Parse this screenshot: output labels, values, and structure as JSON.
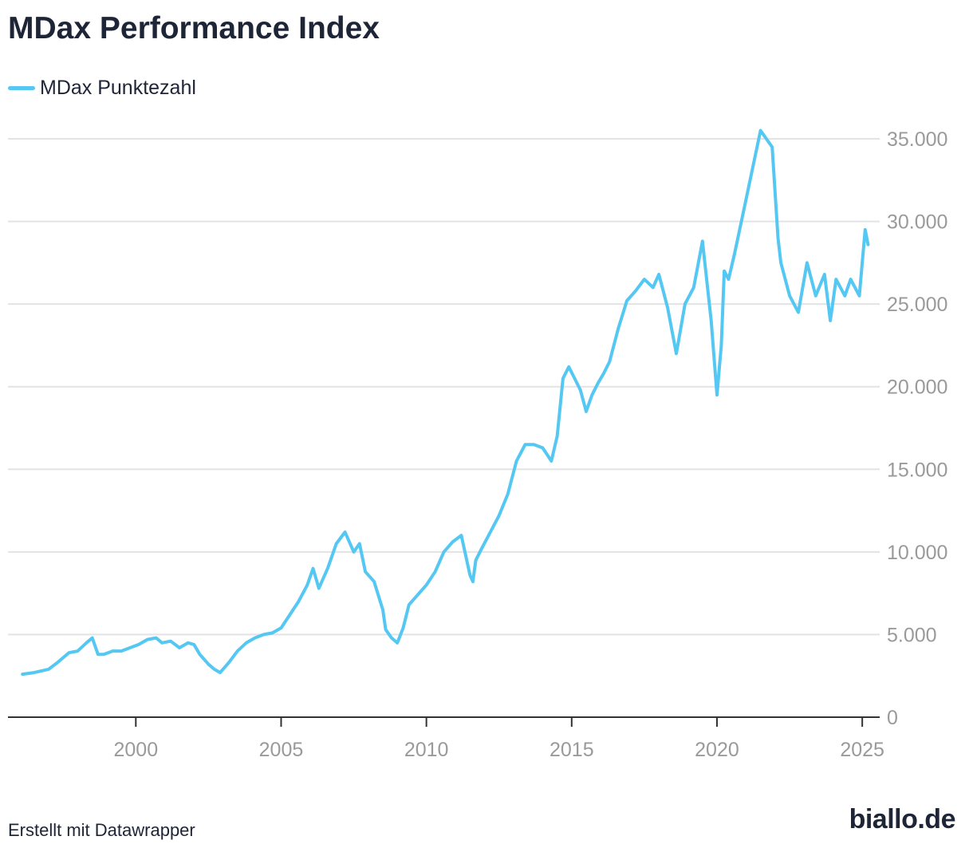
{
  "title": "MDax Performance Index",
  "legend": {
    "label": "MDax Punktezahl"
  },
  "footer": {
    "credit": "Erstellt mit Datawrapper"
  },
  "logo": {
    "text": "biallo.de"
  },
  "colors": {
    "line": "#54c7f2",
    "grid": "#e3e3e3",
    "axis": "#333333",
    "tick": "#9a9a9a"
  },
  "chart_data": {
    "type": "line",
    "title": "MDax Performance Index",
    "xlabel": "",
    "ylabel": "",
    "xlim": [
      1995.6,
      2025.6
    ],
    "ylim": [
      0,
      35000
    ],
    "x_ticks": [
      2000,
      2005,
      2010,
      2015,
      2020,
      2025
    ],
    "x_tick_labels": [
      "2000",
      "2005",
      "2010",
      "2015",
      "2020",
      "2025"
    ],
    "y_ticks": [
      0,
      5000,
      10000,
      15000,
      20000,
      25000,
      30000,
      35000
    ],
    "y_tick_labels": [
      "0",
      "5.000",
      "10.000",
      "15.000",
      "20.000",
      "25.000",
      "30.000",
      "35.000"
    ],
    "series": [
      {
        "name": "MDax Punktezahl",
        "x": [
          1996.1,
          1996.5,
          1997.0,
          1997.3,
          1997.7,
          1998.0,
          1998.3,
          1998.5,
          1998.7,
          1998.9,
          1999.2,
          1999.5,
          1999.8,
          2000.1,
          2000.4,
          2000.7,
          2000.9,
          2001.2,
          2001.5,
          2001.8,
          2002.0,
          2002.2,
          2002.5,
          2002.7,
          2002.9,
          2003.2,
          2003.5,
          2003.8,
          2004.1,
          2004.4,
          2004.7,
          2005.0,
          2005.3,
          2005.6,
          2005.9,
          2006.1,
          2006.3,
          2006.6,
          2006.9,
          2007.2,
          2007.5,
          2007.7,
          2007.9,
          2008.2,
          2008.5,
          2008.6,
          2008.8,
          2009.0,
          2009.2,
          2009.4,
          2009.7,
          2010.0,
          2010.3,
          2010.6,
          2010.9,
          2011.2,
          2011.5,
          2011.6,
          2011.7,
          2011.9,
          2012.2,
          2012.5,
          2012.8,
          2013.1,
          2013.4,
          2013.7,
          2014.0,
          2014.3,
          2014.5,
          2014.7,
          2014.9,
          2015.1,
          2015.3,
          2015.5,
          2015.7,
          2015.9,
          2016.1,
          2016.3,
          2016.6,
          2016.9,
          2017.2,
          2017.5,
          2017.8,
          2018.0,
          2018.3,
          2018.6,
          2018.9,
          2019.2,
          2019.5,
          2019.8,
          2020.0,
          2020.15,
          2020.25,
          2020.4,
          2020.6,
          2020.9,
          2021.2,
          2021.5,
          2021.7,
          2021.9,
          2022.1,
          2022.2,
          2022.5,
          2022.8,
          2023.1,
          2023.4,
          2023.7,
          2023.9,
          2024.1,
          2024.4,
          2024.6,
          2024.9,
          2025.0,
          2025.1,
          2025.2
        ],
        "values": [
          2600,
          2700,
          2900,
          3300,
          3900,
          4000,
          4500,
          4800,
          3800,
          3800,
          4000,
          4000,
          4200,
          4400,
          4700,
          4800,
          4500,
          4600,
          4200,
          4500,
          4400,
          3800,
          3200,
          2900,
          2700,
          3300,
          4000,
          4500,
          4800,
          5000,
          5100,
          5400,
          6200,
          7000,
          8000,
          9000,
          7800,
          9000,
          10500,
          11200,
          10000,
          10500,
          8800,
          8200,
          6500,
          5300,
          4800,
          4500,
          5400,
          6800,
          7400,
          8000,
          8800,
          10000,
          10600,
          11000,
          8600,
          8200,
          9500,
          10200,
          11200,
          12200,
          13500,
          15500,
          16500,
          16500,
          16300,
          15500,
          17000,
          20500,
          21200,
          20500,
          19800,
          18500,
          19500,
          20200,
          20800,
          21500,
          23500,
          25200,
          25800,
          26500,
          26000,
          26800,
          24800,
          22000,
          25000,
          26000,
          28800,
          24000,
          19500,
          22500,
          27000,
          26500,
          28000,
          30500,
          33000,
          35500,
          35000,
          34500,
          29000,
          27500,
          25500,
          24500,
          27500,
          25500,
          26800,
          24000,
          26500,
          25500,
          26500,
          25500,
          27500,
          29500,
          28600
        ]
      }
    ]
  }
}
